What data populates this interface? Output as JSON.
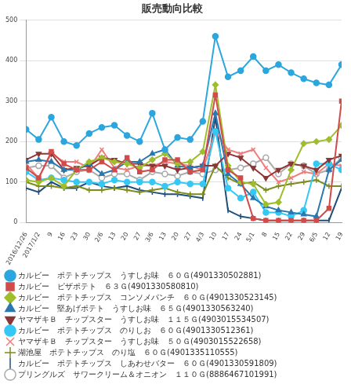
{
  "chart_data": {
    "type": "line",
    "title": "販売動向比較",
    "categories": [
      "2016/12/26",
      "2017/1/2",
      "9",
      "16",
      "23",
      "30",
      "2/6",
      "13",
      "20",
      "27",
      "3/6",
      "13",
      "20",
      "27",
      "4/3",
      "10",
      "17",
      "24",
      "5/1",
      "8",
      "15",
      "22",
      "29",
      "6/5",
      "12",
      "19"
    ],
    "ylim": [
      0,
      500
    ],
    "yticks": [
      0,
      100,
      200,
      300,
      400,
      500
    ],
    "grid": true,
    "legend": "bottom",
    "data_labels": false,
    "series": [
      {
        "name": "カルビー　ポテトチップス　うすしお味　６０Ｇ(4901330502881)",
        "color": "#2ba6de",
        "marker": "circle",
        "values": [
          230,
          205,
          260,
          200,
          190,
          220,
          235,
          240,
          215,
          200,
          270,
          180,
          210,
          205,
          250,
          460,
          360,
          375,
          410,
          375,
          390,
          370,
          355,
          345,
          340,
          390
        ]
      },
      {
        "name": "カルビー　ピザポテト　６３Ｇ(4901330580810)",
        "color": "#d24b4b",
        "marker": "square",
        "values": [
          135,
          110,
          175,
          145,
          130,
          130,
          150,
          130,
          160,
          125,
          130,
          155,
          155,
          125,
          130,
          315,
          130,
          110,
          10,
          5,
          5,
          5,
          5,
          5,
          35,
          300
        ]
      },
      {
        "name": "カルビー　ポテトチップス　コンソメパンチ　６０Ｇ(4901330523145)",
        "color": "#9fbe2c",
        "marker": "diamond",
        "values": [
          105,
          100,
          110,
          90,
          130,
          150,
          160,
          150,
          145,
          135,
          155,
          170,
          145,
          150,
          175,
          340,
          140,
          100,
          95,
          45,
          50,
          130,
          195,
          200,
          205,
          240
        ]
      },
      {
        "name": "カルビー　堅あげポテト　うすしお味　６５Ｇ(4901330563240)",
        "color": "#2a78b0",
        "marker": "triangle",
        "values": [
          150,
          155,
          150,
          130,
          130,
          145,
          120,
          130,
          150,
          150,
          170,
          180,
          140,
          135,
          140,
          270,
          120,
          95,
          60,
          40,
          30,
          25,
          20,
          15,
          130,
          155
        ]
      },
      {
        "name": "ヤマザキＢ　チップスター　うすしお味　１１５Ｇ(4903015534507)",
        "color": "#8c3636",
        "marker": "triangle-down",
        "values": [
          155,
          170,
          170,
          130,
          135,
          140,
          160,
          155,
          145,
          145,
          140,
          140,
          130,
          135,
          140,
          140,
          170,
          160,
          135,
          110,
          130,
          145,
          140,
          130,
          155,
          165
        ]
      },
      {
        "name": "カルビー　ポテトチップス　のりしお　６０Ｇ(4901330512361)",
        "color": "#35c8f5",
        "marker": "circle",
        "values": [
          125,
          105,
          110,
          105,
          100,
          100,
          95,
          105,
          100,
          100,
          100,
          90,
          100,
          95,
          95,
          225,
          85,
          60,
          75,
          25,
          25,
          15,
          30,
          145,
          145,
          130
        ]
      },
      {
        "name": "ヤマザキＢ　チップスター　うすしお味　５０Ｇ(4903015522658)",
        "color": "#f07c7c",
        "marker": "x",
        "values": [
          145,
          110,
          170,
          150,
          150,
          135,
          180,
          135,
          130,
          140,
          140,
          150,
          145,
          140,
          130,
          225,
          180,
          170,
          180,
          135,
          100,
          110,
          125,
          120,
          145,
          140
        ]
      },
      {
        "name": "湖池屋　ポテトチップス　のり塩　６０Ｇ(4901335110555)",
        "color": "#7d8c1c",
        "marker": "plus",
        "values": [
          100,
          90,
          90,
          85,
          90,
          80,
          80,
          85,
          80,
          75,
          80,
          85,
          75,
          70,
          70,
          140,
          110,
          95,
          100,
          80,
          90,
          95,
          100,
          105,
          90,
          90
        ]
      },
      {
        "name": "カルビー　ポテトチップス　しあわせバター　６０Ｇ(4901330591809)",
        "color": "#1f4f7a",
        "marker": "line",
        "values": [
          85,
          75,
          100,
          85,
          85,
          100,
          90,
          85,
          90,
          80,
          75,
          70,
          70,
          65,
          60,
          260,
          30,
          15,
          10,
          5,
          5,
          5,
          5,
          5,
          5,
          85
        ]
      },
      {
        "name": "プリングルズ　サワークリーム＆オニオン　１１０Ｇ(8886467101991)",
        "color": "#aaaaaa",
        "marker": "circle-open",
        "values": [
          135,
          140,
          140,
          110,
          125,
          130,
          110,
          120,
          120,
          105,
          125,
          120,
          115,
          125,
          120,
          130,
          130,
          135,
          145,
          160,
          120,
          145,
          140,
          120,
          130,
          160
        ]
      }
    ]
  }
}
